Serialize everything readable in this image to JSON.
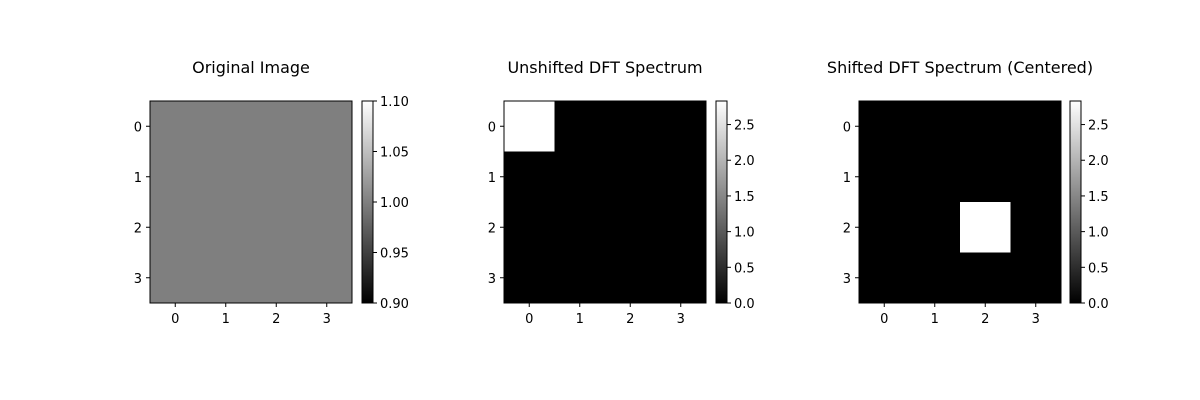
{
  "chart_data": [
    {
      "type": "heatmap",
      "title": "Original Image",
      "x_ticks": [
        "0",
        "1",
        "2",
        "3"
      ],
      "y_ticks": [
        "0",
        "1",
        "2",
        "3"
      ],
      "values": [
        [
          1,
          1,
          1,
          1
        ],
        [
          1,
          1,
          1,
          1
        ],
        [
          1,
          1,
          1,
          1
        ],
        [
          1,
          1,
          1,
          1
        ]
      ],
      "colormap": "gray",
      "vmin": 0.9,
      "vmax": 1.1,
      "colorbar_ticks": [
        0.9,
        0.95,
        1.0,
        1.05,
        1.1
      ],
      "colorbar_tick_labels": [
        "0.90",
        "0.95",
        "1.00",
        "1.05",
        "1.10"
      ]
    },
    {
      "type": "heatmap",
      "title": "Unshifted DFT Spectrum",
      "x_ticks": [
        "0",
        "1",
        "2",
        "3"
      ],
      "y_ticks": [
        "0",
        "1",
        "2",
        "3"
      ],
      "values": [
        [
          2.83,
          0,
          0,
          0
        ],
        [
          0,
          0,
          0,
          0
        ],
        [
          0,
          0,
          0,
          0
        ],
        [
          0,
          0,
          0,
          0
        ]
      ],
      "colormap": "gray",
      "vmin": 0,
      "vmax": 2.83,
      "colorbar_ticks": [
        0,
        0.5,
        1.0,
        1.5,
        2.0,
        2.5
      ],
      "colorbar_tick_labels": [
        "0.0",
        "0.5",
        "1.0",
        "1.5",
        "2.0",
        "2.5"
      ]
    },
    {
      "type": "heatmap",
      "title": "Shifted DFT Spectrum (Centered)",
      "x_ticks": [
        "0",
        "1",
        "2",
        "3"
      ],
      "y_ticks": [
        "0",
        "1",
        "2",
        "3"
      ],
      "values": [
        [
          0,
          0,
          0,
          0
        ],
        [
          0,
          0,
          0,
          0
        ],
        [
          0,
          0,
          2.83,
          0
        ],
        [
          0,
          0,
          0,
          0
        ]
      ],
      "colormap": "gray",
      "vmin": 0,
      "vmax": 2.83,
      "colorbar_ticks": [
        0,
        0.5,
        1.0,
        1.5,
        2.0,
        2.5
      ],
      "colorbar_tick_labels": [
        "0.0",
        "0.5",
        "1.0",
        "1.5",
        "2.0",
        "2.5"
      ]
    }
  ]
}
